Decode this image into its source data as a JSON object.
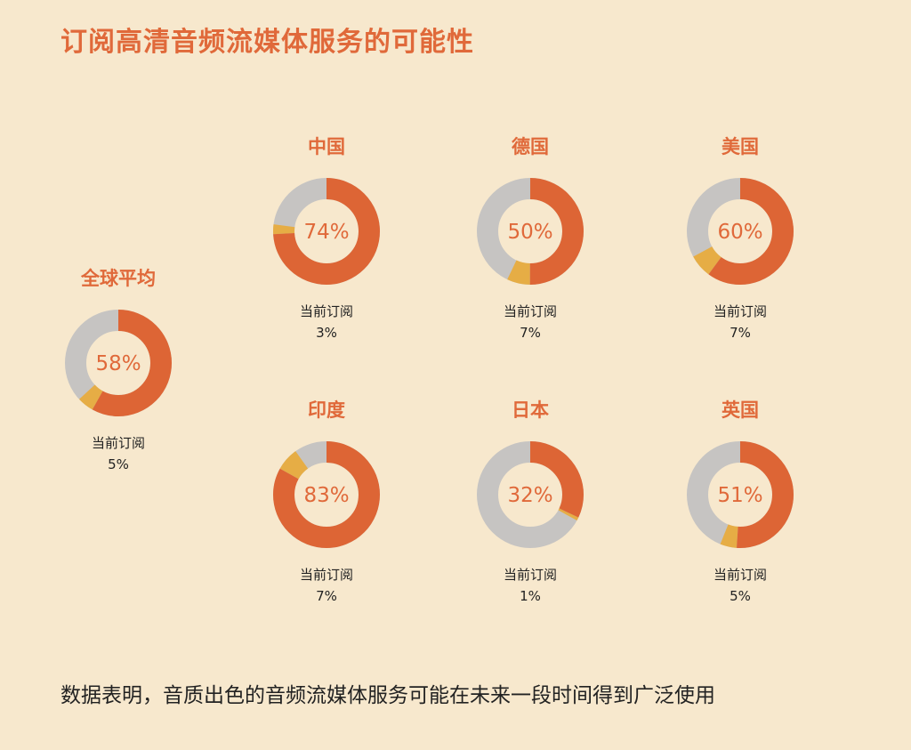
{
  "title": "订阅高清音频流媒体服务的可能性",
  "footer": "数据表明，音质出色的音频流媒体服务可能在未来一段时间得到广泛使用",
  "current_label": "当前订阅",
  "colors": {
    "background": "#f7e8cd",
    "likelihood": "#dd6535",
    "current": "#e6ad45",
    "remainder": "#c6c4c2",
    "accent_text": "#e0693a"
  },
  "chart_data": {
    "type": "pie",
    "subtype": "donut",
    "title": "订阅高清音频流媒体服务的可能性",
    "series_meaning": [
      "likelihood",
      "current"
    ],
    "items": [
      {
        "name": "全球平均",
        "likelihood": 58,
        "current": 5,
        "likelihood_label": "58%",
        "current_label": "5%"
      },
      {
        "name": "中国",
        "likelihood": 74,
        "current": 3,
        "likelihood_label": "74%",
        "current_label": "3%"
      },
      {
        "name": "德国",
        "likelihood": 50,
        "current": 7,
        "likelihood_label": "50%",
        "current_label": "7%"
      },
      {
        "name": "美国",
        "likelihood": 60,
        "current": 7,
        "likelihood_label": "60%",
        "current_label": "7%"
      },
      {
        "name": "印度",
        "likelihood": 83,
        "current": 7,
        "likelihood_label": "83%",
        "current_label": "7%"
      },
      {
        "name": "日本",
        "likelihood": 32,
        "current": 1,
        "likelihood_label": "32%",
        "current_label": "1%"
      },
      {
        "name": "英国",
        "likelihood": 51,
        "current": 5,
        "likelihood_label": "51%",
        "current_label": "5%"
      }
    ]
  }
}
